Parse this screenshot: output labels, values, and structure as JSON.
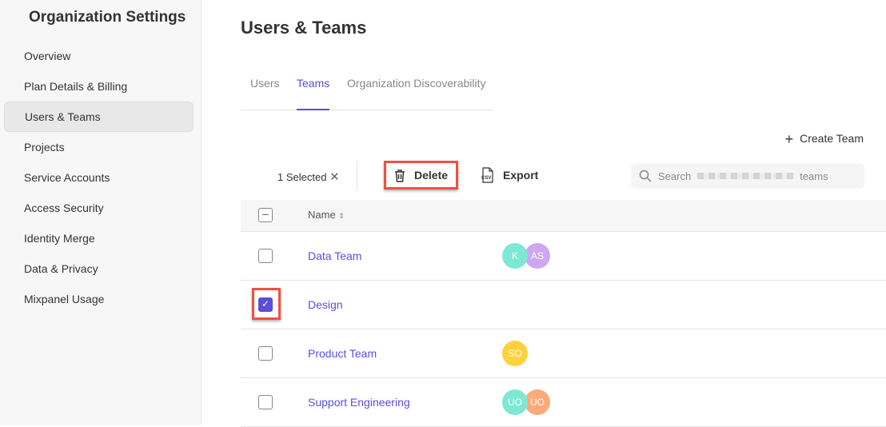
{
  "sidebar": {
    "title": "Organization Settings",
    "items": [
      {
        "label": "Overview"
      },
      {
        "label": "Plan Details & Billing"
      },
      {
        "label": "Users & Teams",
        "active": true
      },
      {
        "label": "Projects"
      },
      {
        "label": "Service Accounts"
      },
      {
        "label": "Access Security"
      },
      {
        "label": "Identity Merge"
      },
      {
        "label": "Data & Privacy"
      },
      {
        "label": "Mixpanel Usage"
      }
    ]
  },
  "header": {
    "title": "Users & Teams"
  },
  "tabs": [
    {
      "label": "Users"
    },
    {
      "label": "Teams",
      "active": true
    },
    {
      "label": "Organization Discoverability"
    }
  ],
  "create_team": "Create Team",
  "toolbar": {
    "selected": "1 Selected",
    "delete": "Delete",
    "export": "Export",
    "search_prefix": "Search",
    "search_suffix": "teams"
  },
  "table": {
    "header": "Name",
    "rows": [
      {
        "name": "Data Team",
        "checked": false,
        "members": [
          {
            "initials": "K",
            "color": "#7de8d4"
          },
          {
            "initials": "AS",
            "color": "#cfa6f0"
          }
        ]
      },
      {
        "name": "Design",
        "checked": true,
        "members": []
      },
      {
        "name": "Product Team",
        "checked": false,
        "members": [
          {
            "initials": "SO",
            "color": "#fdd23c"
          }
        ]
      },
      {
        "name": "Support Engineering",
        "checked": false,
        "members": [
          {
            "initials": "UO",
            "color": "#7de8d4"
          },
          {
            "initials": "UO",
            "color": "#fcaa7a"
          }
        ]
      }
    ]
  },
  "colors": {
    "accent": "#5a4fd8",
    "highlight": "#f05045"
  }
}
